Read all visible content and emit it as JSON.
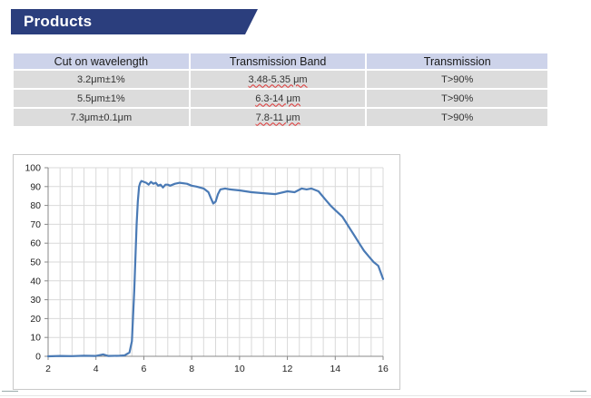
{
  "banner": {
    "title": "Products",
    "color": "#2b3e7d"
  },
  "table": {
    "headers": [
      "Cut on wavelength",
      "Transmission Band",
      "Transmission"
    ],
    "rows": [
      [
        "3.2μm±1%",
        "3.48-5.35 μm",
        "T>90%"
      ],
      [
        "5.5μm±1%",
        "6.3-14 μm",
        "T>90%"
      ],
      [
        "7.3μm±0.1μm",
        "7.8-11 μm",
        "T>90%"
      ]
    ]
  },
  "chart_data": {
    "type": "line",
    "title": "",
    "xlabel": "",
    "ylabel": "",
    "xlim": [
      2,
      16
    ],
    "ylim": [
      0,
      100
    ],
    "xticks": [
      2,
      4,
      6,
      8,
      10,
      12,
      14,
      16
    ],
    "yticks": [
      0,
      10,
      20,
      30,
      40,
      50,
      60,
      70,
      80,
      90,
      100
    ],
    "grid": true,
    "line_color": "#4a7ab5",
    "series": [
      {
        "x": [
          2.0,
          2.5,
          3.0,
          3.5,
          4.0,
          4.3,
          4.5,
          5.0,
          5.2,
          5.4,
          5.5,
          5.6,
          5.7,
          5.75,
          5.8,
          5.85,
          5.9,
          6.0,
          6.1,
          6.2,
          6.3,
          6.4,
          6.5,
          6.6,
          6.7,
          6.8,
          6.9,
          7.0,
          7.1,
          7.3,
          7.5,
          7.8,
          8.0,
          8.2,
          8.5,
          8.7,
          8.8,
          8.9,
          9.0,
          9.1,
          9.2,
          9.4,
          9.6,
          10.0,
          10.5,
          11.0,
          11.5,
          12.0,
          12.3,
          12.6,
          12.8,
          13.0,
          13.3,
          13.6,
          13.8,
          14.0,
          14.3,
          14.6,
          14.8,
          15.0,
          15.2,
          15.4,
          15.6,
          15.8,
          16.0
        ],
        "y": [
          0,
          0.2,
          0.1,
          0.3,
          0.2,
          1.0,
          0.2,
          0.3,
          0.5,
          2.0,
          8.0,
          35.0,
          70.0,
          82.0,
          90.0,
          92.0,
          93.0,
          92.5,
          92.0,
          91.0,
          92.5,
          91.5,
          92.0,
          90.5,
          91.0,
          89.5,
          91.0,
          91.0,
          90.5,
          91.5,
          92.0,
          91.5,
          90.5,
          90.0,
          89.0,
          87.0,
          84.0,
          81.0,
          82.0,
          86.0,
          88.5,
          89.0,
          88.5,
          88.0,
          87.0,
          86.5,
          86.0,
          87.5,
          87.0,
          89.0,
          88.5,
          89.0,
          87.5,
          83.0,
          80.0,
          77.5,
          74.0,
          68.0,
          64.0,
          60.0,
          56.0,
          53.0,
          50.0,
          48.0,
          41.0
        ]
      }
    ]
  }
}
